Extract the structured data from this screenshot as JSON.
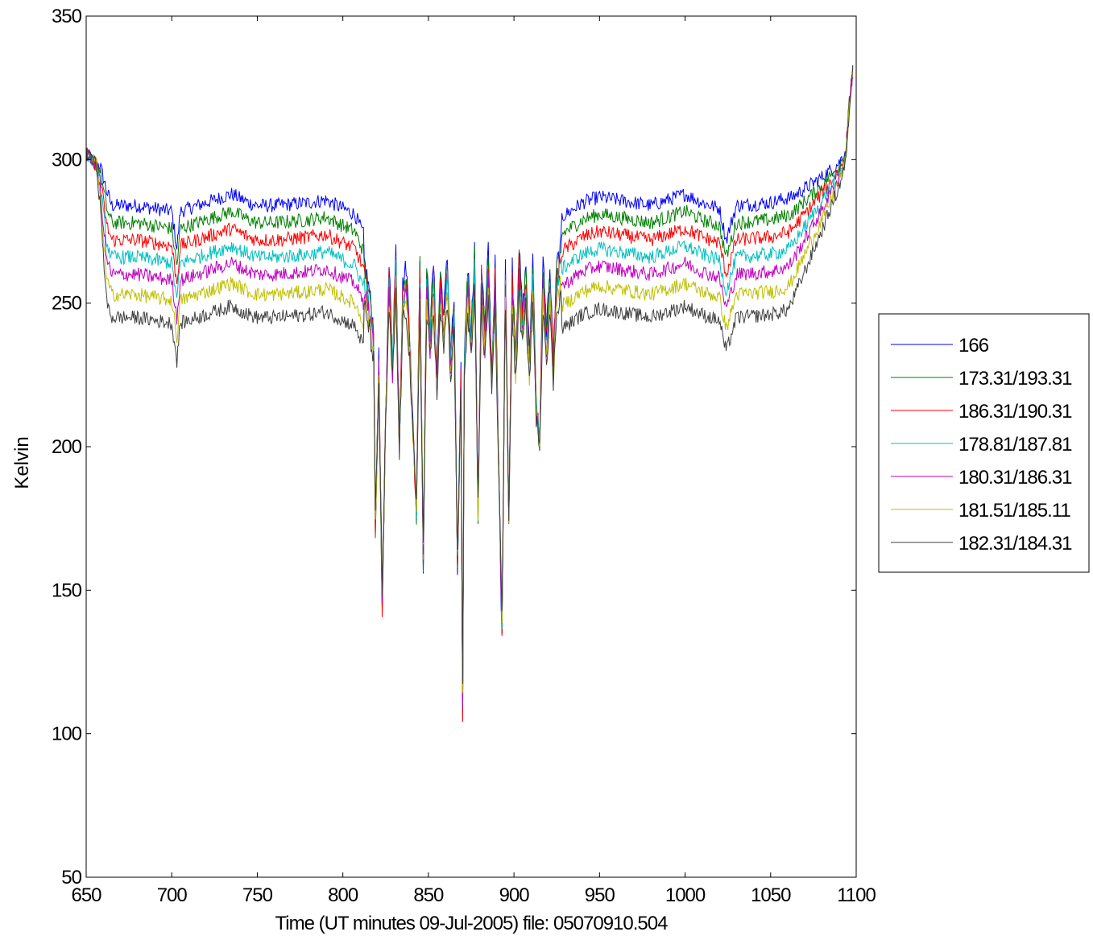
{
  "chart_data": {
    "type": "line",
    "title": "",
    "xlabel": "Time (UT minutes 09-Jul-2005) file: 05070910.504",
    "ylabel": "Kelvin",
    "xlim": [
      650,
      1100
    ],
    "ylim": [
      50,
      350
    ],
    "xticks": [
      650,
      700,
      750,
      800,
      850,
      900,
      950,
      1000,
      1050,
      1100
    ],
    "yticks": [
      50,
      100,
      150,
      200,
      250,
      300,
      350
    ],
    "grid": false,
    "legend_position": "outside-right",
    "noise_amplitude_kelvin": 2.5,
    "baseline": {
      "x": [
        650,
        653,
        658,
        662,
        665,
        680,
        700,
        703,
        705,
        720,
        735,
        745,
        750,
        760,
        780,
        790,
        800,
        807,
        812
      ],
      "y": [
        302,
        300,
        297,
        285,
        280,
        280,
        278,
        265,
        278,
        281,
        284,
        281,
        280,
        280,
        281,
        282,
        279,
        277,
        270
      ]
    },
    "baseline_right": {
      "x": [
        928,
        940,
        950,
        960,
        980,
        1000,
        1010,
        1020,
        1024,
        1030,
        1050,
        1062,
        1070,
        1080,
        1090,
        1094,
        1096,
        1098
      ],
      "y": [
        276,
        281,
        283,
        282,
        280,
        284,
        281,
        279,
        268,
        280,
        281,
        283,
        287,
        292,
        298,
        303,
        320,
        331
      ]
    },
    "gap_samples": {
      "x": [
        812,
        815,
        818,
        819,
        821,
        823,
        825,
        827,
        829,
        831,
        833,
        835,
        837,
        839,
        841,
        843,
        845,
        847,
        849,
        851,
        853,
        855,
        857,
        859,
        861,
        863,
        865,
        867,
        869,
        870,
        871,
        873,
        875,
        877,
        879,
        881,
        883,
        885,
        887,
        889,
        891,
        893,
        895,
        897,
        899,
        901,
        903,
        905,
        907,
        909,
        911,
        913,
        915,
        917,
        919,
        921,
        923,
        925,
        928
      ],
      "y": [
        265,
        255,
        240,
        170,
        230,
        140,
        210,
        262,
        230,
        268,
        200,
        255,
        262,
        240,
        205,
        175,
        265,
        158,
        260,
        240,
        263,
        225,
        260,
        245,
        265,
        232,
        250,
        155,
        225,
        100,
        230,
        262,
        240,
        268,
        175,
        263,
        240,
        268,
        225,
        262,
        195,
        130,
        265,
        172,
        262,
        230,
        268,
        245,
        262,
        230,
        265,
        215,
        200,
        264,
        240,
        260,
        230,
        262,
        270
      ]
    },
    "series": [
      {
        "name": "166",
        "color": "#0000ff",
        "offset": 4,
        "depth": 1.0
      },
      {
        "name": "173.31/193.31",
        "color": "#008000",
        "offset": -2,
        "depth": 0.97
      },
      {
        "name": "186.31/190.31",
        "color": "#ff0000",
        "offset": -8,
        "depth": 0.94
      },
      {
        "name": "178.81/187.81",
        "color": "#00bfbf",
        "offset": -14,
        "depth": 0.91
      },
      {
        "name": "180.31/186.31",
        "color": "#bf00bf",
        "offset": -20,
        "depth": 0.88
      },
      {
        "name": "181.51/185.11",
        "color": "#bfbf00",
        "offset": -27,
        "depth": 0.84
      },
      {
        "name": "182.31/184.31",
        "color": "#404040",
        "offset": -35,
        "depth": 0.8
      }
    ]
  }
}
